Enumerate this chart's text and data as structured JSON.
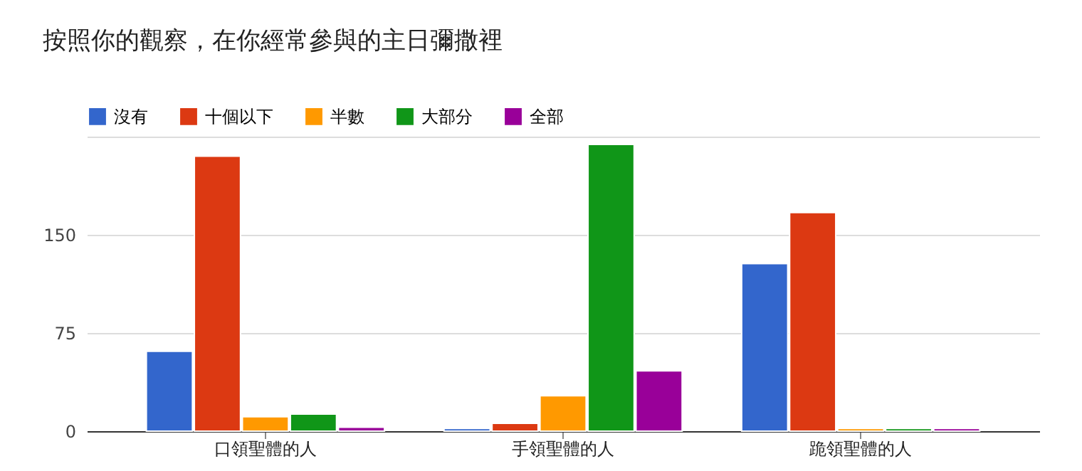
{
  "chart_data": {
    "type": "bar",
    "title": "按照你的觀察，在你經常參與的主日彌撒裡",
    "categories": [
      "口領聖體的人",
      "手領聖體的人",
      "跪領聖體的人"
    ],
    "series": [
      {
        "name": "沒有",
        "color": "#3366cc",
        "values": [
          61,
          2,
          128
        ]
      },
      {
        "name": "十個以下",
        "color": "#dc3912",
        "values": [
          210,
          6,
          167
        ]
      },
      {
        "name": "半數",
        "color": "#ff9900",
        "values": [
          11,
          27,
          2
        ]
      },
      {
        "name": "大部分",
        "color": "#109618",
        "values": [
          13,
          219,
          2
        ]
      },
      {
        "name": "全部",
        "color": "#990099",
        "values": [
          3,
          46,
          2
        ]
      }
    ],
    "ylim": [
      0,
      225
    ],
    "yticks": [
      0,
      75,
      150,
      {
        "value": 225,
        "label": null
      }
    ],
    "grid": "y",
    "legend": "top left"
  }
}
